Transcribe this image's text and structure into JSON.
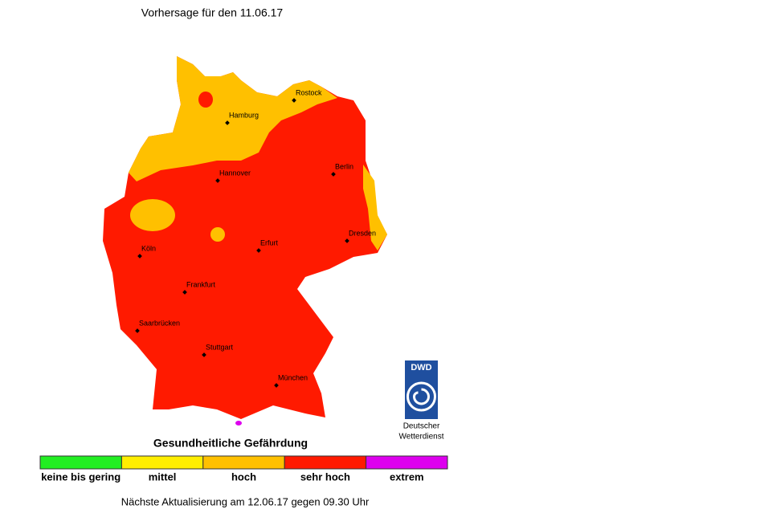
{
  "header": {
    "title": "Vorhersage für den 11.06.17"
  },
  "cities": [
    {
      "label": "Rostock"
    },
    {
      "label": "Hamburg"
    },
    {
      "label": "Hannover"
    },
    {
      "label": "Berlin"
    },
    {
      "label": "Dresden"
    },
    {
      "label": "Erfurt"
    },
    {
      "label": "Köln"
    },
    {
      "label": "Frankfurt"
    },
    {
      "label": "Saarbrücken"
    },
    {
      "label": "Stuttgart"
    },
    {
      "label": "München"
    }
  ],
  "logo": {
    "abbr": "DWD",
    "line1": "Deutscher",
    "line2": "Wetterdienst"
  },
  "legend": {
    "title": "Gesundheitliche Gefährdung",
    "items": [
      {
        "label": "keine bis gering",
        "color": "#22ee22"
      },
      {
        "label": "mittel",
        "color": "#ffee00"
      },
      {
        "label": "hoch",
        "color": "#ffc000"
      },
      {
        "label": "sehr hoch",
        "color": "#ff1a00"
      },
      {
        "label": "extrem",
        "color": "#dd00ee"
      }
    ]
  },
  "footer": {
    "text": "Nächste Aktualisierung am 12.06.17 gegen 09.30 Uhr"
  }
}
